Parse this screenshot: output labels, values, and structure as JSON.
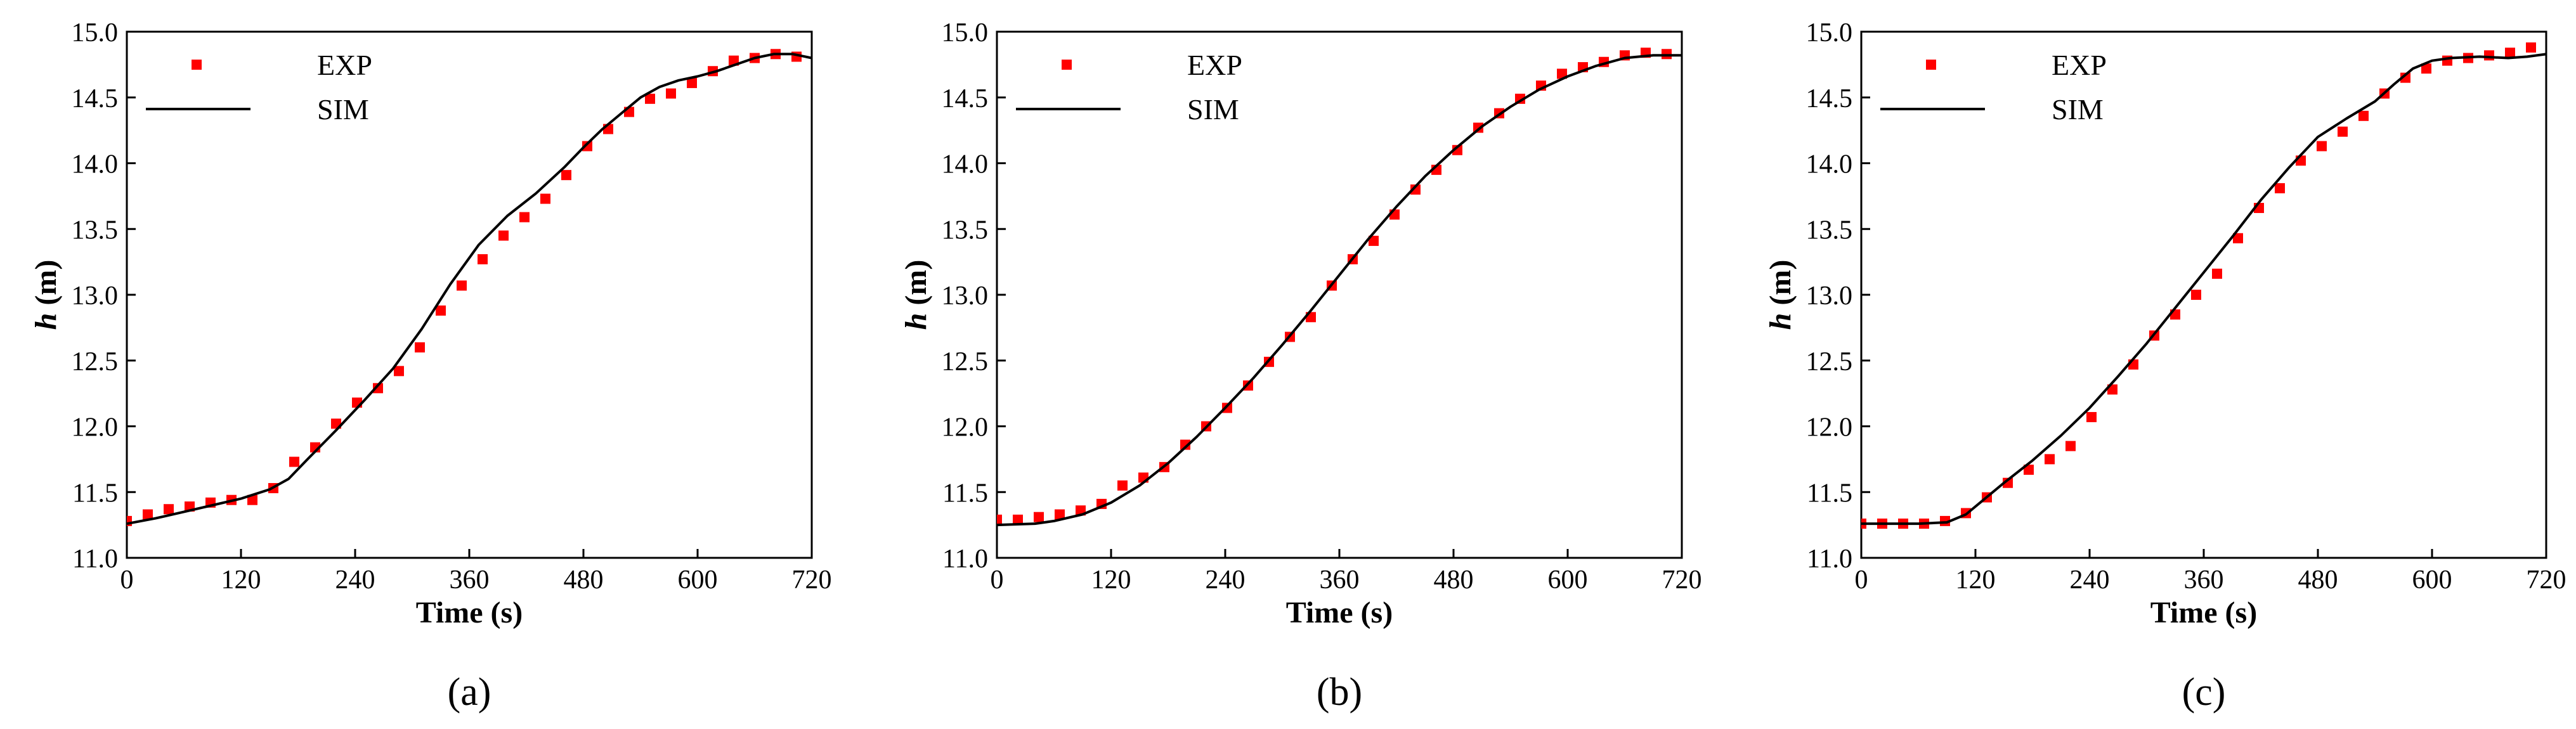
{
  "chart_data": [
    {
      "type": "scatter",
      "panel": "(a)",
      "xlabel": "Time (s)",
      "ylabel_var": "h",
      "ylabel_unit": " (m)",
      "xlim": [
        0,
        720
      ],
      "ylim": [
        11.0,
        15.0
      ],
      "xticks": [
        0,
        120,
        240,
        360,
        480,
        600,
        720
      ],
      "yticks": [
        11.0,
        11.5,
        12.0,
        12.5,
        13.0,
        13.5,
        14.0,
        14.5,
        15.0
      ],
      "legend": [
        "EXP",
        "SIM"
      ],
      "legend_position": "top-left",
      "series": [
        {
          "name": "EXP",
          "style": "marker",
          "color": "#ff0000",
          "x": [
            0,
            22,
            44,
            66,
            88,
            110,
            132,
            154,
            176,
            198,
            220,
            242,
            264,
            286,
            308,
            330,
            352,
            374,
            396,
            418,
            440,
            462,
            484,
            506,
            528,
            550,
            572,
            594,
            616,
            638,
            660,
            682,
            704
          ],
          "y": [
            11.28,
            11.33,
            11.37,
            11.39,
            11.42,
            11.44,
            11.44,
            11.53,
            11.73,
            11.84,
            12.02,
            12.18,
            12.29,
            12.42,
            12.6,
            12.88,
            13.07,
            13.27,
            13.45,
            13.59,
            13.73,
            13.91,
            14.13,
            14.26,
            14.39,
            14.49,
            14.53,
            14.61,
            14.7,
            14.78,
            14.8,
            14.83,
            14.81
          ]
        },
        {
          "name": "SIM",
          "style": "line",
          "color": "#000000",
          "x": [
            0,
            30,
            60,
            90,
            120,
            150,
            170,
            190,
            220,
            250,
            280,
            310,
            340,
            370,
            400,
            430,
            460,
            480,
            500,
            520,
            540,
            560,
            580,
            600,
            620,
            640,
            660,
            680,
            700,
            720
          ],
          "y": [
            11.26,
            11.3,
            11.35,
            11.4,
            11.45,
            11.52,
            11.6,
            11.75,
            11.97,
            12.2,
            12.44,
            12.74,
            13.08,
            13.38,
            13.6,
            13.77,
            13.97,
            14.12,
            14.26,
            14.38,
            14.5,
            14.58,
            14.63,
            14.66,
            14.7,
            14.75,
            14.8,
            14.83,
            14.83,
            14.8
          ]
        }
      ]
    },
    {
      "type": "scatter",
      "panel": "(b)",
      "xlabel": "Time (s)",
      "ylabel_var": "h",
      "ylabel_unit": " (m)",
      "xlim": [
        0,
        720
      ],
      "ylim": [
        11.0,
        15.0
      ],
      "xticks": [
        0,
        120,
        240,
        360,
        480,
        600,
        720
      ],
      "yticks": [
        11.0,
        11.5,
        12.0,
        12.5,
        13.0,
        13.5,
        14.0,
        14.5,
        15.0
      ],
      "legend": [
        "EXP",
        "SIM"
      ],
      "legend_position": "top-left",
      "series": [
        {
          "name": "EXP",
          "style": "marker",
          "color": "#ff0000",
          "x": [
            0,
            22,
            44,
            66,
            88,
            110,
            132,
            154,
            176,
            198,
            220,
            242,
            264,
            286,
            308,
            330,
            352,
            374,
            396,
            418,
            440,
            462,
            484,
            506,
            528,
            550,
            572,
            594,
            616,
            638,
            660,
            682,
            704
          ],
          "y": [
            11.29,
            11.29,
            11.31,
            11.33,
            11.36,
            11.41,
            11.55,
            11.61,
            11.69,
            11.86,
            12.0,
            12.14,
            12.31,
            12.49,
            12.68,
            12.83,
            13.07,
            13.27,
            13.41,
            13.61,
            13.8,
            13.95,
            14.1,
            14.27,
            14.38,
            14.49,
            14.59,
            14.68,
            14.73,
            14.77,
            14.82,
            14.84,
            14.83
          ]
        },
        {
          "name": "SIM",
          "style": "line",
          "color": "#000000",
          "x": [
            0,
            40,
            60,
            90,
            120,
            150,
            180,
            210,
            240,
            270,
            300,
            330,
            360,
            390,
            420,
            450,
            480,
            510,
            540,
            570,
            600,
            630,
            660,
            690,
            720
          ],
          "y": [
            11.25,
            11.26,
            11.28,
            11.33,
            11.42,
            11.55,
            11.72,
            11.92,
            12.14,
            12.37,
            12.62,
            12.88,
            13.15,
            13.42,
            13.67,
            13.9,
            14.1,
            14.28,
            14.43,
            14.56,
            14.66,
            14.74,
            14.8,
            14.82,
            14.82
          ]
        }
      ]
    },
    {
      "type": "scatter",
      "panel": "(c)",
      "xlabel": "Time (s)",
      "ylabel_var": "h",
      "ylabel_unit": " (m)",
      "xlim": [
        0,
        720
      ],
      "ylim": [
        11.0,
        15.0
      ],
      "xticks": [
        0,
        120,
        240,
        360,
        480,
        600,
        720
      ],
      "yticks": [
        11.0,
        11.5,
        12.0,
        12.5,
        13.0,
        13.5,
        14.0,
        14.5,
        15.0
      ],
      "legend": [
        "EXP",
        "SIM"
      ],
      "legend_position": "top-left",
      "series": [
        {
          "name": "EXP",
          "style": "marker",
          "color": "#ff0000",
          "x": [
            0,
            22,
            44,
            66,
            88,
            110,
            132,
            154,
            176,
            198,
            220,
            242,
            264,
            286,
            308,
            330,
            352,
            374,
            396,
            418,
            440,
            462,
            484,
            506,
            528,
            550,
            572,
            594,
            616,
            638,
            660,
            682,
            704
          ],
          "y": [
            11.26,
            11.26,
            11.26,
            11.26,
            11.28,
            11.34,
            11.46,
            11.57,
            11.67,
            11.75,
            11.85,
            12.07,
            12.28,
            12.47,
            12.69,
            12.85,
            13.0,
            13.16,
            13.43,
            13.66,
            13.81,
            14.02,
            14.13,
            14.24,
            14.36,
            14.53,
            14.65,
            14.72,
            14.78,
            14.8,
            14.82,
            14.84,
            14.88
          ]
        },
        {
          "name": "SIM",
          "style": "line",
          "color": "#000000",
          "x": [
            0,
            30,
            60,
            90,
            110,
            130,
            150,
            180,
            210,
            240,
            270,
            300,
            330,
            360,
            390,
            420,
            450,
            480,
            510,
            540,
            560,
            580,
            600,
            620,
            650,
            680,
            700,
            720
          ],
          "y": [
            11.26,
            11.26,
            11.26,
            11.27,
            11.33,
            11.45,
            11.57,
            11.74,
            11.93,
            12.14,
            12.38,
            12.63,
            12.9,
            13.17,
            13.44,
            13.72,
            13.97,
            14.2,
            14.34,
            14.47,
            14.6,
            14.72,
            14.78,
            14.8,
            14.81,
            14.8,
            14.81,
            14.83
          ]
        }
      ]
    }
  ]
}
